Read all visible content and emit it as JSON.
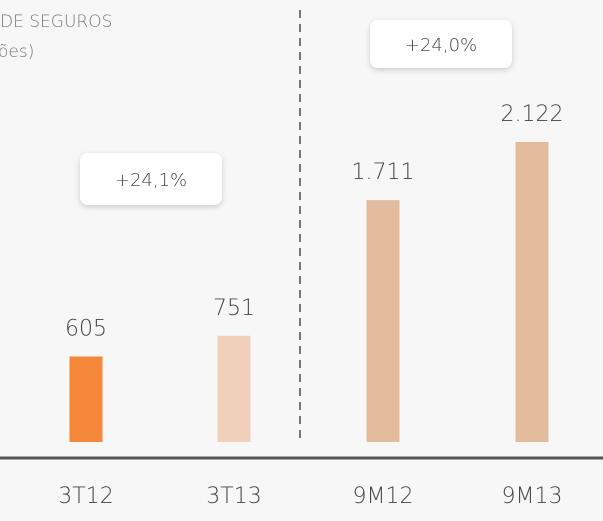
{
  "chart_data": {
    "type": "bar",
    "title": [
      "DE SEGUROS",
      "ões)"
    ],
    "categories": [
      "3T12",
      "3T13",
      "9M12",
      "9M13"
    ],
    "values": [
      605,
      751,
      1711,
      2122
    ],
    "value_labels": [
      "605",
      "751",
      "1.711",
      "2.122"
    ],
    "colors": [
      "#f5883a",
      "#f0d0b8",
      "#e2bc9d",
      "#e2bc9d"
    ],
    "annotations": [
      "+24,1%",
      "+24,0%"
    ]
  }
}
